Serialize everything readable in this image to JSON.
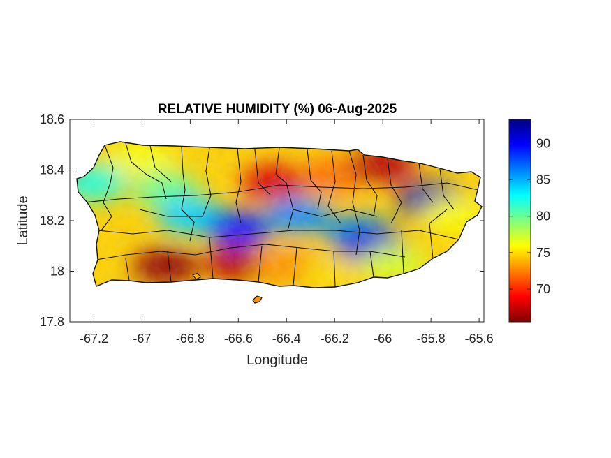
{
  "chart_data": {
    "type": "heatmap",
    "title": "RELATIVE HUMIDITY (%) 06-Aug-2025",
    "xlabel": "Longitude",
    "ylabel": "Latitude",
    "xlim": [
      -67.3,
      -65.58
    ],
    "ylim": [
      17.8,
      18.6
    ],
    "x_ticks": [
      -67.2,
      -67,
      -66.8,
      -66.6,
      -66.4,
      -66.2,
      -66,
      -65.8,
      -65.6
    ],
    "x_tick_labels": [
      "-67.2",
      "-67",
      "-66.8",
      "-66.6",
      "-66.4",
      "-66.2",
      "-66",
      "-65.8",
      "-65.6"
    ],
    "y_ticks": [
      17.8,
      18,
      18.2,
      18.4,
      18.6
    ],
    "y_tick_labels": [
      "17.8",
      "18",
      "18.2",
      "18.4",
      "18.6"
    ],
    "colorbar": {
      "colormap": "jet-reversed",
      "range": [
        65.5,
        93.3
      ],
      "ticks": [
        70,
        75,
        80,
        85,
        90
      ],
      "tick_labels": [
        "70",
        "75",
        "80",
        "85",
        "90"
      ],
      "colors": [
        "#800000",
        "#ff0000",
        "#ff8000",
        "#ffff00",
        "#80ff80",
        "#00ffff",
        "#0080ff",
        "#0000ff",
        "#000080"
      ]
    },
    "humidity_field": [
      {
        "lon": -67.2,
        "lat": 18.35,
        "rh": 82
      },
      {
        "lon": -67.0,
        "lat": 18.45,
        "rh": 76
      },
      {
        "lon": -66.9,
        "lat": 18.32,
        "rh": 80
      },
      {
        "lon": -66.8,
        "lat": 18.22,
        "rh": 84
      },
      {
        "lon": -66.6,
        "lat": 18.17,
        "rh": 89
      },
      {
        "lon": -66.45,
        "lat": 18.35,
        "rh": 68
      },
      {
        "lon": -66.35,
        "lat": 18.22,
        "rh": 86
      },
      {
        "lon": -66.2,
        "lat": 18.38,
        "rh": 72
      },
      {
        "lon": -66.1,
        "lat": 18.15,
        "rh": 86
      },
      {
        "lon": -66.05,
        "lat": 18.1,
        "rh": 91
      },
      {
        "lon": -66.0,
        "lat": 18.42,
        "rh": 67
      },
      {
        "lon": -65.8,
        "lat": 18.28,
        "rh": 92
      },
      {
        "lon": -65.7,
        "lat": 18.22,
        "rh": 76
      },
      {
        "lon": -66.9,
        "lat": 18.02,
        "rh": 66
      },
      {
        "lon": -66.6,
        "lat": 18.03,
        "rh": 67
      },
      {
        "lon": -66.4,
        "lat": 18.02,
        "rh": 73
      },
      {
        "lon": -66.2,
        "lat": 17.98,
        "rh": 75
      },
      {
        "lon": -65.95,
        "lat": 18.03,
        "rh": 77
      }
    ]
  }
}
